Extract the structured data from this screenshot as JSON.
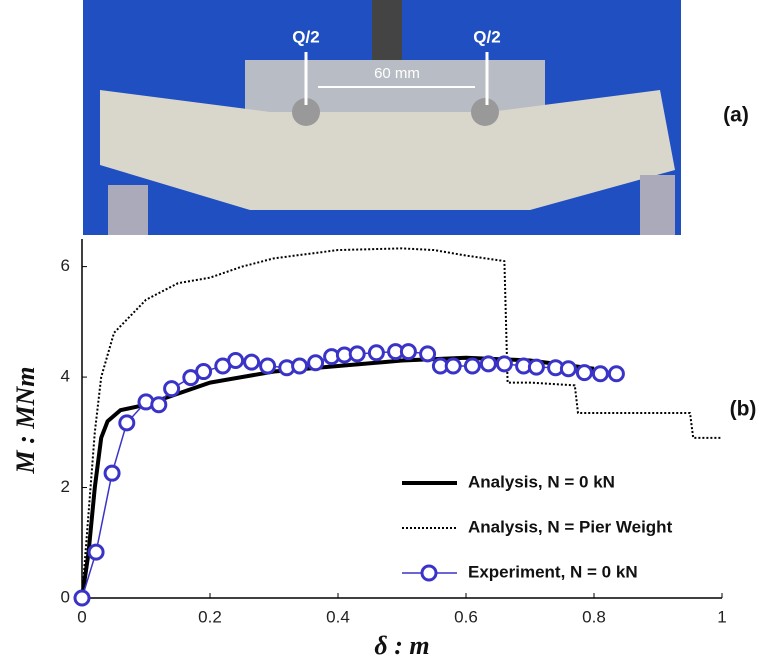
{
  "figure": {
    "photo_labels": [
      "Q/2",
      "Q/2",
      "60 mm"
    ],
    "panel_a": "(a)",
    "panel_b": "(b)"
  },
  "chart_data": {
    "type": "line",
    "xlabel": "δ : m",
    "ylabel": "M : MNm",
    "xlim": [
      0,
      1
    ],
    "ylim": [
      0,
      6.5
    ],
    "xticks": [
      0,
      0.2,
      0.4,
      0.6,
      0.8,
      1
    ],
    "yticks": [
      0,
      2,
      4,
      6
    ],
    "grid": false,
    "legend": "lower right",
    "series": [
      {
        "name": "Analysis, N = 0 kN",
        "color": "#000000",
        "style": "solid",
        "x": [
          0,
          0.01,
          0.02,
          0.03,
          0.04,
          0.06,
          0.1,
          0.15,
          0.2,
          0.3,
          0.4,
          0.5,
          0.6,
          0.7,
          0.8
        ],
        "values": [
          0,
          0.8,
          2,
          2.9,
          3.2,
          3.4,
          3.5,
          3.7,
          3.9,
          4.1,
          4.2,
          4.3,
          4.35,
          4.3,
          4.15
        ]
      },
      {
        "name": "Analysis, N = Pier Weight",
        "color": "#000000",
        "style": "dotted",
        "x": [
          0,
          0.01,
          0.02,
          0.03,
          0.05,
          0.1,
          0.15,
          0.2,
          0.25,
          0.3,
          0.4,
          0.5,
          0.55,
          0.6,
          0.66,
          0.665,
          0.7,
          0.77,
          0.775,
          0.95,
          0.955,
          1
        ],
        "values": [
          0,
          1.5,
          3,
          4,
          4.8,
          5.4,
          5.7,
          5.8,
          6,
          6.15,
          6.3,
          6.33,
          6.3,
          6.2,
          6.1,
          3.9,
          3.9,
          3.85,
          3.35,
          3.35,
          2.9,
          2.9
        ]
      },
      {
        "name": "Experiment, N = 0 kN",
        "color": "#3a33c8",
        "style": "marker",
        "x": [
          0,
          0.022,
          0.047,
          0.07,
          0.1,
          0.12,
          0.14,
          0.17,
          0.19,
          0.22,
          0.24,
          0.265,
          0.29,
          0.32,
          0.34,
          0.365,
          0.39,
          0.41,
          0.43,
          0.46,
          0.49,
          0.51,
          0.54,
          0.56,
          0.58,
          0.61,
          0.635,
          0.66,
          0.69,
          0.71,
          0.74,
          0.76,
          0.785,
          0.81,
          0.835
        ],
        "values": [
          0,
          0.83,
          2.26,
          3.17,
          3.55,
          3.5,
          3.79,
          3.99,
          4.1,
          4.2,
          4.3,
          4.27,
          4.2,
          4.17,
          4.2,
          4.26,
          4.37,
          4.4,
          4.42,
          4.44,
          4.46,
          4.46,
          4.42,
          4.2,
          4.2,
          4.2,
          4.24,
          4.24,
          4.2,
          4.18,
          4.17,
          4.15,
          4.08,
          4.06,
          4.06
        ]
      }
    ]
  }
}
